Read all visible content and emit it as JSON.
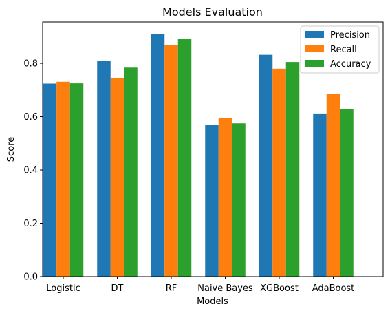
{
  "chart_data": {
    "type": "bar",
    "title": "Models Evaluation",
    "xlabel": "Models",
    "ylabel": "Score",
    "categories": [
      "Logistic",
      "DT",
      "RF",
      "Naive Bayes",
      "XGBoost",
      "AdaBoost"
    ],
    "series": [
      {
        "name": "Precision",
        "color": "#1f77b4",
        "values": [
          0.724,
          0.808,
          0.909,
          0.57,
          0.832,
          0.612
        ]
      },
      {
        "name": "Recall",
        "color": "#ff7f0e",
        "values": [
          0.731,
          0.746,
          0.868,
          0.596,
          0.78,
          0.684
        ]
      },
      {
        "name": "Accuracy",
        "color": "#2ca02c",
        "values": [
          0.725,
          0.784,
          0.892,
          0.575,
          0.805,
          0.628
        ]
      }
    ],
    "ylim": [
      0,
      0.955
    ],
    "yticks": [
      "0.0",
      "0.2",
      "0.4",
      "0.6",
      "0.8"
    ],
    "grid": false,
    "legend_position": "top-right"
  }
}
